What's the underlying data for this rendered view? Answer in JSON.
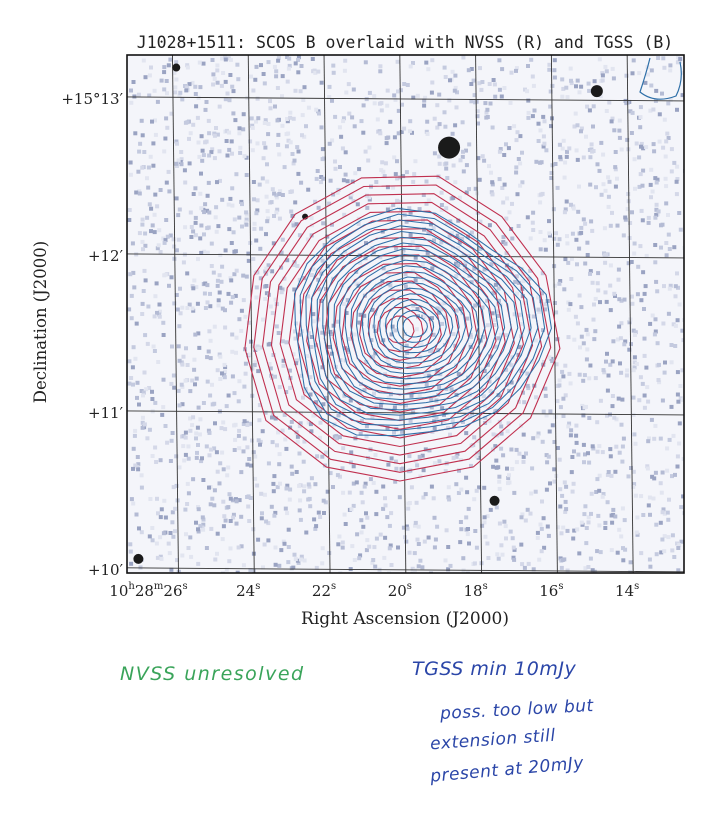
{
  "chart_data": {
    "type": "contour",
    "title": "J1028+1511: SCOS B overlaid with NVSS (R) and TGSS (B)",
    "xlabel": "Right Ascension (J2000)",
    "ylabel": "Declination (J2000)",
    "x_ticks": [
      {
        "sec": 26,
        "label_main": "10",
        "label_h": "h",
        "label_mid": "28",
        "label_m": "m",
        "label_tail": "26",
        "label_s": "s"
      },
      {
        "sec": 24,
        "label_main": "24",
        "label_s": "s"
      },
      {
        "sec": 22,
        "label_main": "22",
        "label_s": "s"
      },
      {
        "sec": 20,
        "label_main": "20",
        "label_s": "s"
      },
      {
        "sec": 18,
        "label_main": "18",
        "label_s": "s"
      },
      {
        "sec": 16,
        "label_main": "16",
        "label_s": "s"
      },
      {
        "sec": 14,
        "label_main": "14",
        "label_s": "s"
      }
    ],
    "y_ticks": [
      {
        "arcmin": 13,
        "label": "+15°13′"
      },
      {
        "arcmin": 12,
        "label": "+12′"
      },
      {
        "arcmin": 11,
        "label": "+11′"
      },
      {
        "arcmin": 10,
        "label": "+10′"
      }
    ],
    "xlim_sec": [
      27.2,
      12.5
    ],
    "ylim_arcmin": [
      9.98,
      13.28
    ],
    "grid": true,
    "series": [
      {
        "name": "NVSS (R)",
        "color": "#c0304f",
        "center": [
          20.0,
          11.53
        ],
        "levels": 17
      },
      {
        "name": "TGSS (B)",
        "color": "#2e6fa8",
        "center": [
          19.6,
          11.55
        ],
        "levels": 20
      }
    ]
  },
  "annotations": {
    "nvss_note": "NVSS unresolved",
    "tgss_line1": "TGSS min 10mJy",
    "tgss_line2": "poss. too low but",
    "tgss_line3": "extension still",
    "tgss_line4": "present at 20mJy"
  },
  "colors": {
    "nvss": "#c0304f",
    "tgss": "#2e6fa8",
    "note_green": "#3aa45a",
    "note_blue": "#2b46a8"
  }
}
